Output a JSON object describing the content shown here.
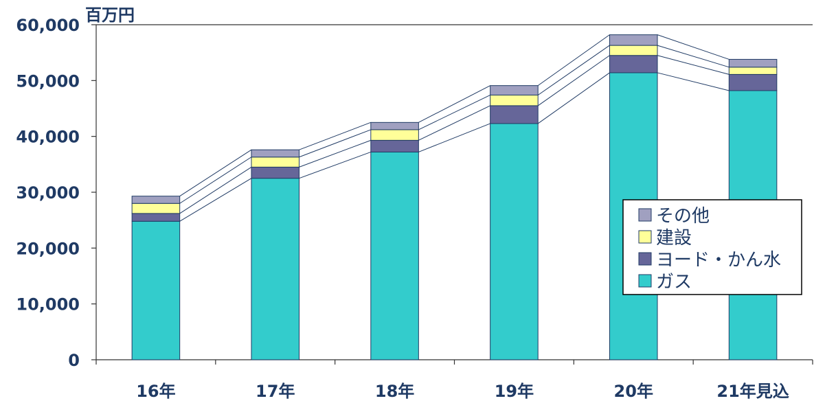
{
  "chart_data": {
    "type": "bar",
    "stacked": true,
    "title": "",
    "xlabel": "",
    "ylabel": "百万円",
    "ylim": [
      0,
      60000
    ],
    "yticks": [
      "0",
      "10,000",
      "20,000",
      "30,000",
      "40,000",
      "50,000",
      "60,000"
    ],
    "categories": [
      "16年",
      "17年",
      "18年",
      "19年",
      "20年",
      "21年見込"
    ],
    "series": [
      {
        "name": "ガス",
        "color": "#33cccc",
        "values": [
          24800,
          32500,
          37200,
          42300,
          51400,
          48200
        ]
      },
      {
        "name": "ヨード・かん水",
        "color": "#666699",
        "values": [
          1400,
          2000,
          2100,
          3200,
          3100,
          2900
        ]
      },
      {
        "name": "建設",
        "color": "#ffff99",
        "values": [
          1800,
          1800,
          1900,
          1900,
          1800,
          1300
        ]
      },
      {
        "name": "その他",
        "color": "#a0a0c0",
        "values": [
          1300,
          1300,
          1300,
          1700,
          1900,
          1400
        ]
      }
    ],
    "legend_position": "right",
    "connector_lines": true,
    "grid": false
  }
}
